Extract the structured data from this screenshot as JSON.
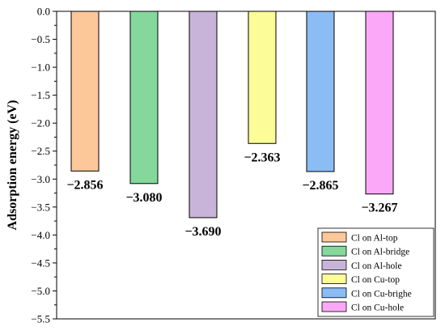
{
  "chart_data": {
    "type": "bar",
    "ylabel": "Adsorption energy (eV)",
    "ylim": [
      -5.5,
      0.0
    ],
    "ytick_step": 0.5,
    "yticks": [
      "0.0",
      "-0.5",
      "-1.0",
      "-1.5",
      "-2.0",
      "-2.5",
      "-3.0",
      "-3.5",
      "-4.0",
      "-4.5",
      "-5.0",
      "-5.5"
    ],
    "legend_position": "bottom-right",
    "grid": false,
    "series": [
      {
        "name": "Cl on Al-top",
        "value": -2.856,
        "label": "−2.856",
        "color": "#fcc89a"
      },
      {
        "name": "Cl on Al-bridge",
        "value": -3.08,
        "label": "−3.080",
        "color": "#84d89c"
      },
      {
        "name": "Cl on Al-hole",
        "value": -3.69,
        "label": "−3.690",
        "color": "#c8b4d8"
      },
      {
        "name": "Cl on Cu-top",
        "value": -2.363,
        "label": "−2.363",
        "color": "#fcfc98"
      },
      {
        "name": "Cl on Cu-brighe",
        "value": -2.865,
        "label": "−2.865",
        "color": "#8cbcf4"
      },
      {
        "name": "Cl on Cu-hole",
        "value": -3.267,
        "label": "−3.267",
        "color": "#fca8f8"
      }
    ]
  }
}
